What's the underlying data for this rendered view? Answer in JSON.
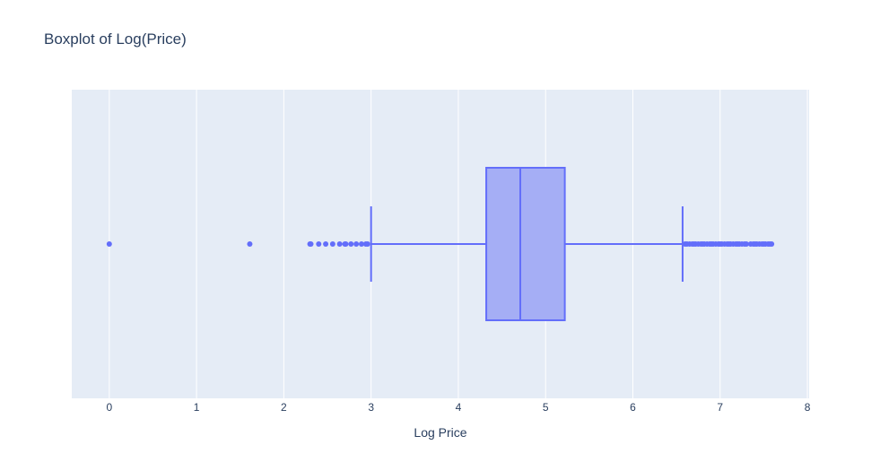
{
  "chart_data": {
    "type": "box",
    "title": "Boxplot of Log(Price)",
    "xlabel": "Log Price",
    "ylabel": "",
    "xlim": [
      -0.43,
      8.02
    ],
    "xticks": [
      0,
      1,
      2,
      3,
      4,
      5,
      6,
      7,
      8
    ],
    "grid": true,
    "orientation": "horizontal",
    "box": {
      "lower_fence": 3.0,
      "q1": 4.32,
      "median": 4.71,
      "q3": 5.22,
      "upper_fence": 6.57
    },
    "outliers_low": [
      0.0,
      1.61,
      2.3,
      2.31,
      2.4,
      2.48,
      2.56,
      2.64,
      2.7,
      2.71,
      2.77,
      2.83,
      2.89,
      2.94,
      2.96
    ],
    "outliers_high": [
      6.6,
      6.62,
      6.65,
      6.68,
      6.7,
      6.72,
      6.75,
      6.78,
      6.8,
      6.82,
      6.85,
      6.88,
      6.9,
      6.92,
      6.95,
      6.98,
      7.0,
      7.02,
      7.05,
      7.08,
      7.1,
      7.12,
      7.15,
      7.18,
      7.2,
      7.22,
      7.25,
      7.28,
      7.3,
      7.35,
      7.38,
      7.4,
      7.42,
      7.45,
      7.48,
      7.5,
      7.52,
      7.55,
      7.57,
      7.59
    ],
    "colors": {
      "box_fill": "#a5aef5",
      "line": "#636efa",
      "plot_bg": "#e5ecf6",
      "grid": "#ffffff",
      "text": "#2a3f5f"
    }
  }
}
